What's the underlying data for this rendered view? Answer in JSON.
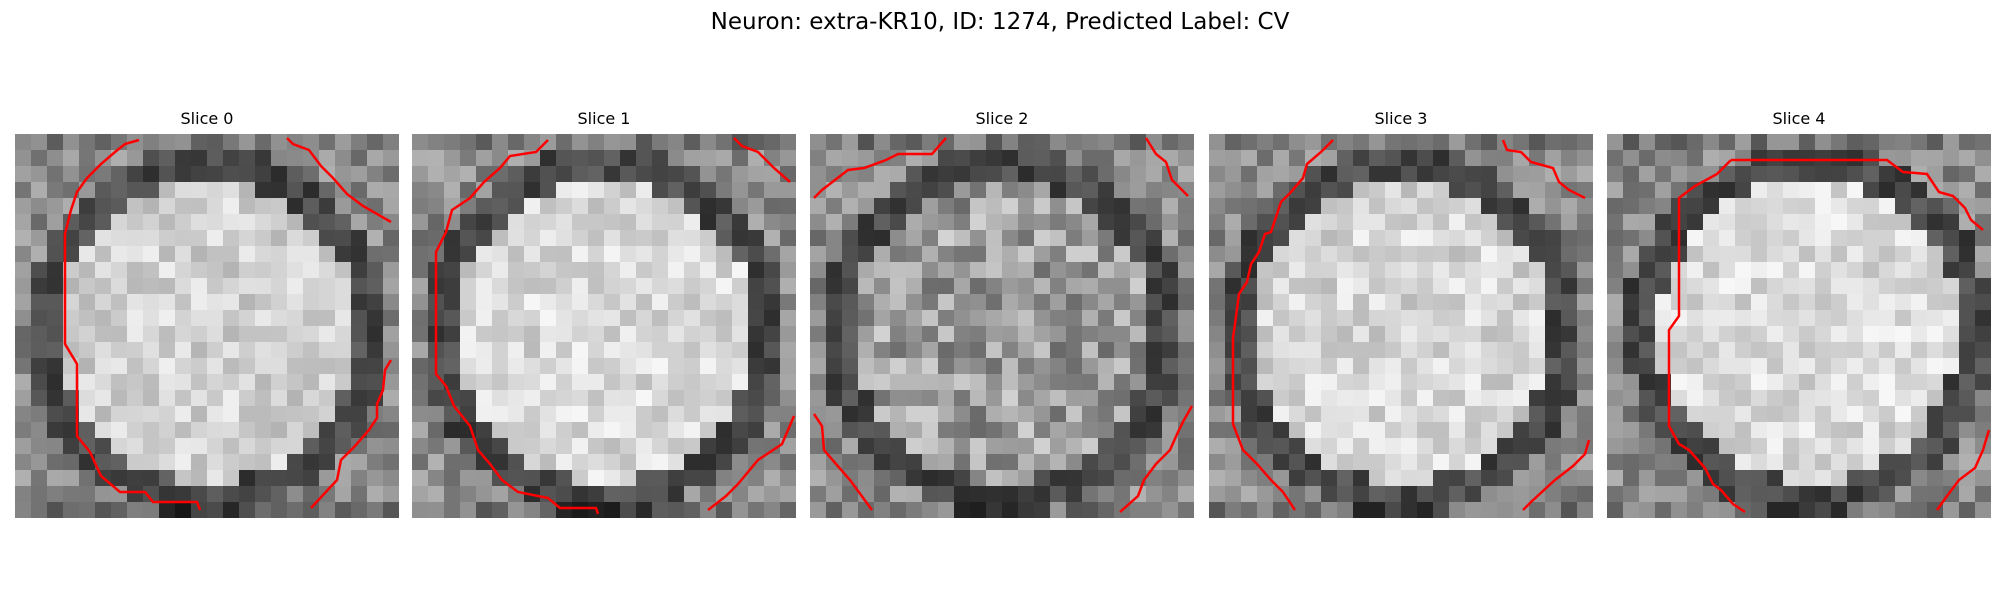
{
  "figure": {
    "title": "Neuron: extra-KR10, ID: 1274, Predicted Label: CV"
  },
  "colors": {
    "contour": "#ff0000",
    "background": "#ffffff",
    "colormap": "gray"
  },
  "slices": [
    {
      "label": "Slice 0",
      "brightness": 0.82
    },
    {
      "label": "Slice 1",
      "brightness": 0.85
    },
    {
      "label": "Slice 2",
      "brightness": 0.62
    },
    {
      "label": "Slice 3",
      "brightness": 0.84
    },
    {
      "label": "Slice 4",
      "brightness": 0.86
    }
  ]
}
